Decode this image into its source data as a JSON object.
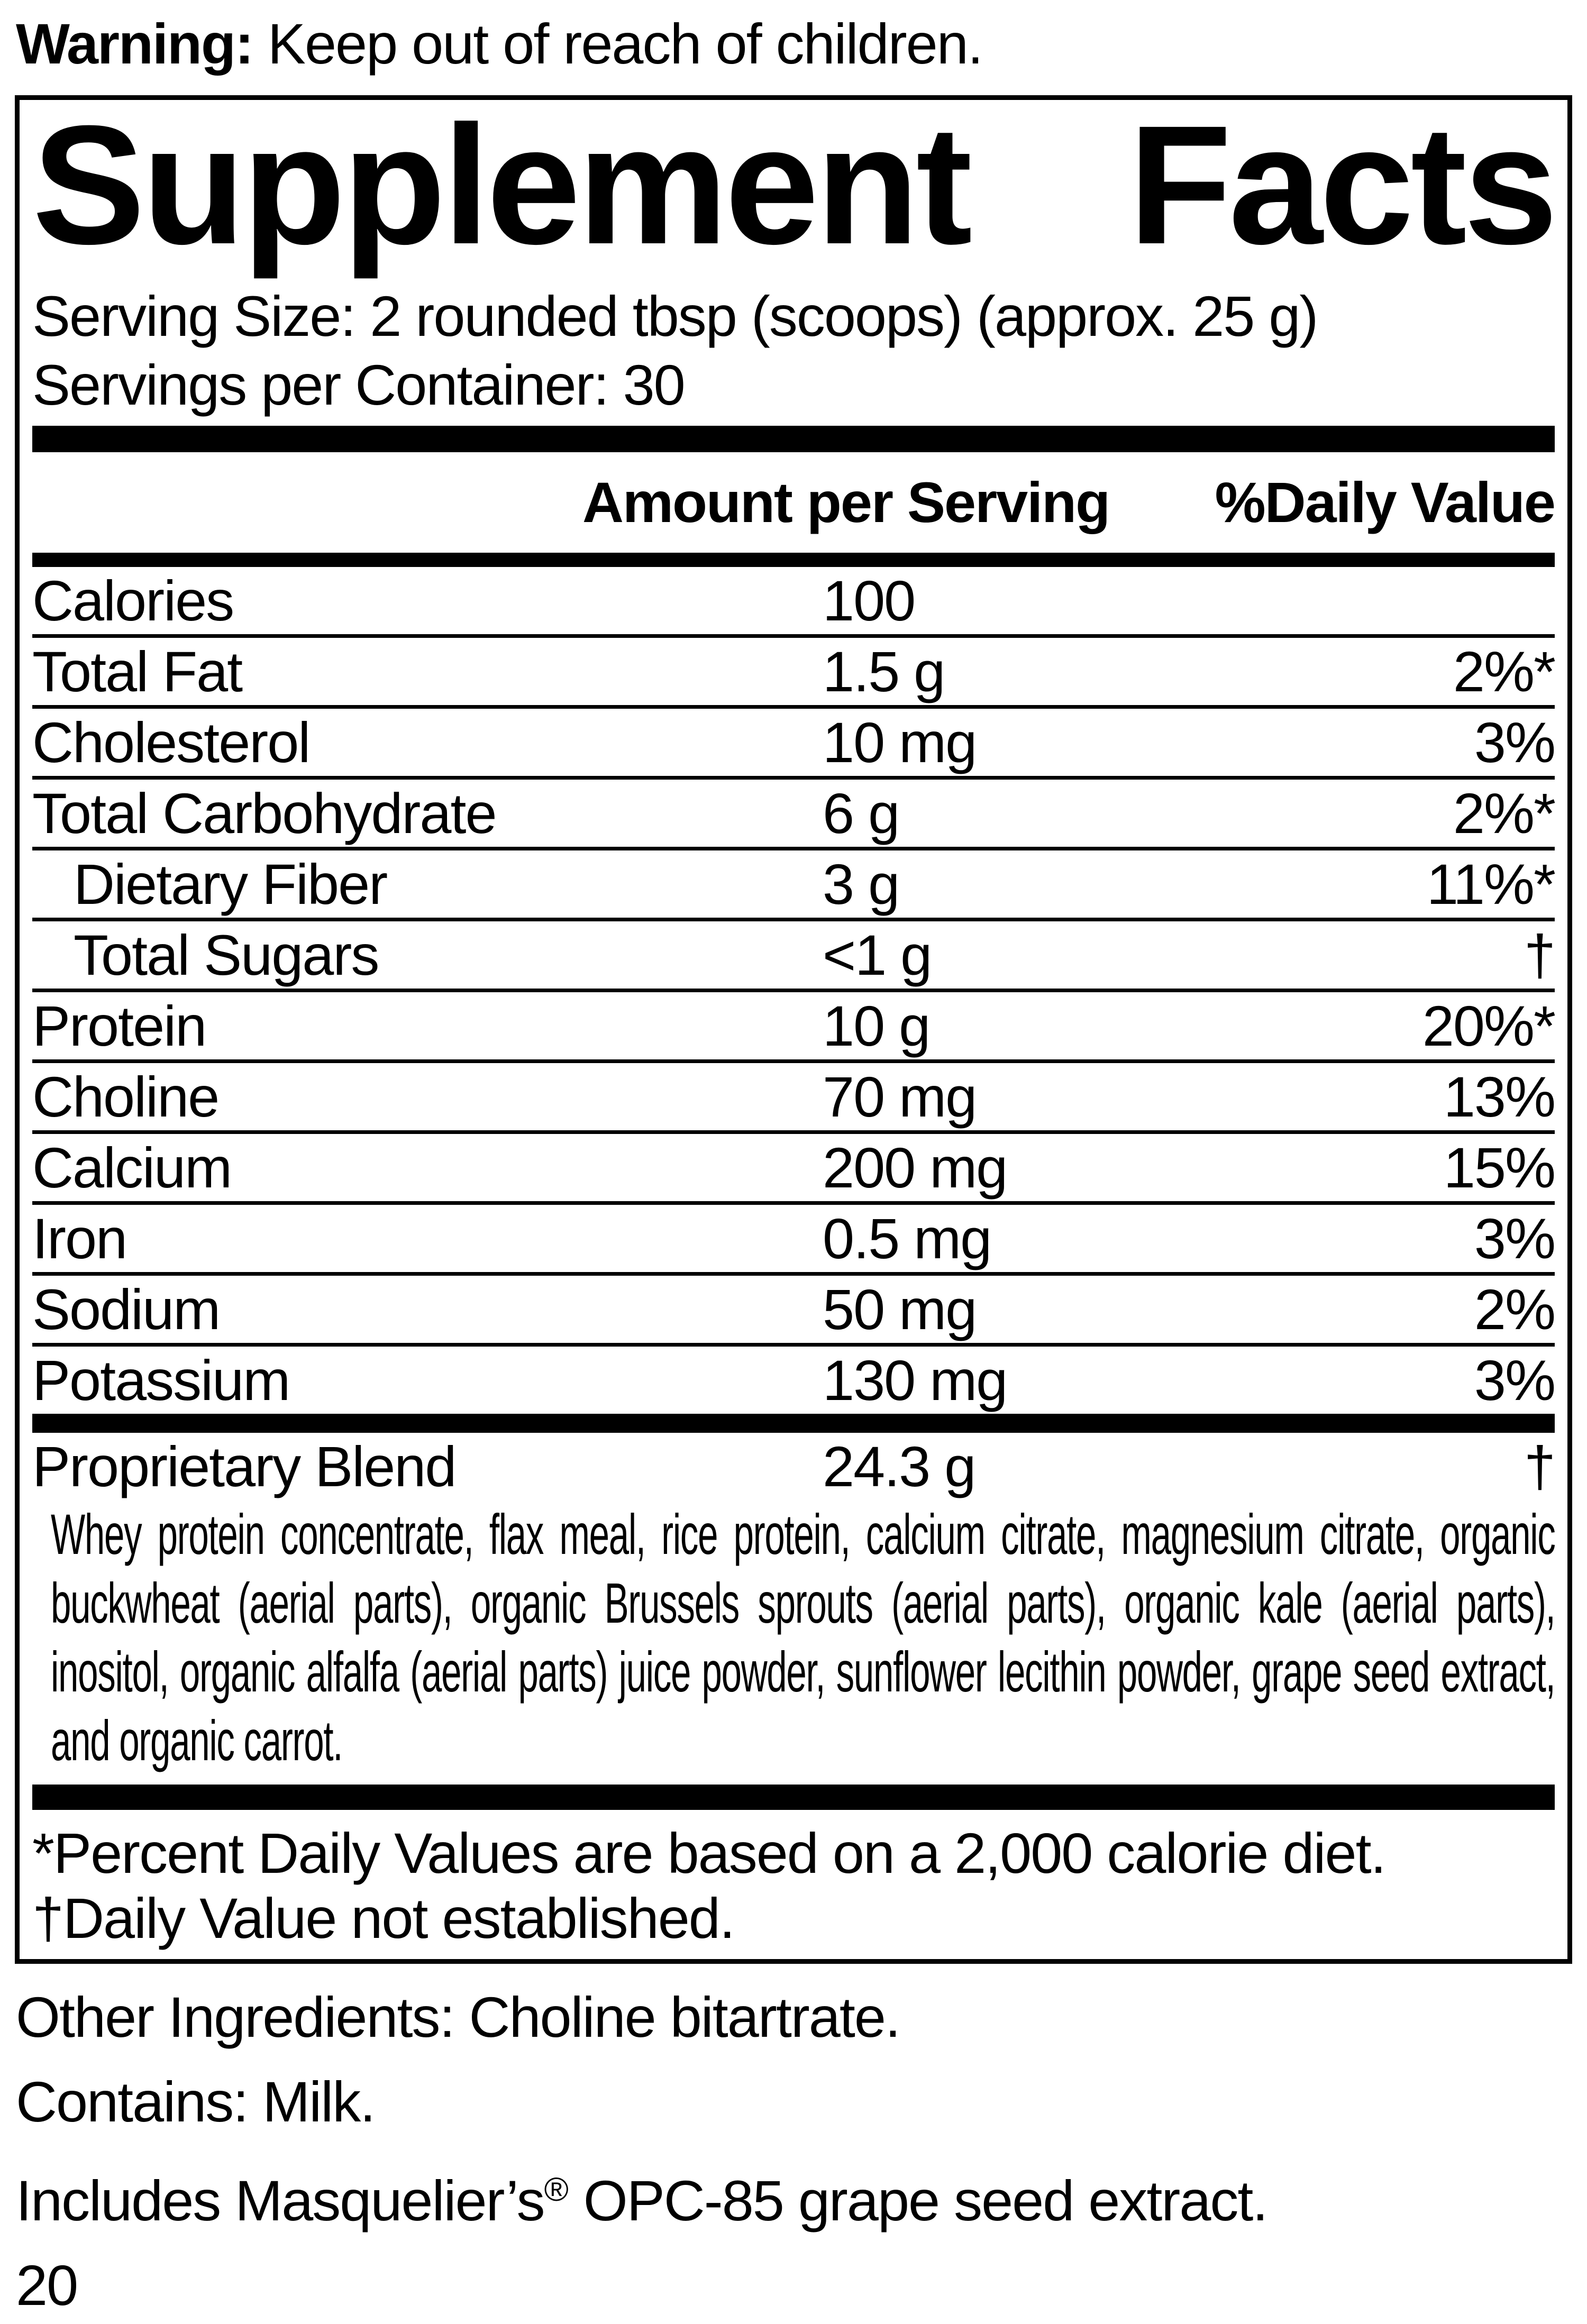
{
  "page": {
    "warning_bold": "Warning:",
    "warning_rest": " Keep out of reach of children.",
    "other_ingredients": "Other Ingredients: Choline bitartrate.",
    "contains": "Contains: Milk.",
    "includes_prefix": "Includes Masquelier’s",
    "includes_reg_mark": "®",
    "includes_suffix": " OPC-85 grape seed extract.",
    "page_number": "20"
  },
  "label": {
    "title_words": [
      "Supplement",
      "Facts"
    ],
    "serving_size": "Serving Size: 2 rounded tbsp (scoops) (approx. 25 g)",
    "servings_per_container": "Servings per Container: 30",
    "col_amount": "Amount per Serving",
    "col_dv": "%Daily Value",
    "rows": [
      {
        "name": "Calories",
        "amount": "100",
        "dv": ""
      },
      {
        "name": "Total Fat",
        "amount": "1.5 g",
        "dv": "2%*"
      },
      {
        "name": "Cholesterol",
        "amount": "10 mg",
        "dv": "3%"
      },
      {
        "name": "Total Carbohydrate",
        "amount": "6 g",
        "dv": "2%*"
      },
      {
        "name": "Dietary Fiber",
        "amount": "3 g",
        "dv": "11%*"
      },
      {
        "name": "Total Sugars",
        "amount": "<1 g",
        "dv": "†"
      },
      {
        "name": "Protein",
        "amount": "10 g",
        "dv": "20%*"
      },
      {
        "name": "Choline",
        "amount": "70 mg",
        "dv": "13%"
      },
      {
        "name": "Calcium",
        "amount": "200 mg",
        "dv": "15%"
      },
      {
        "name": "Iron",
        "amount": "0.5 mg",
        "dv": "3%"
      },
      {
        "name": "Sodium",
        "amount": "50 mg",
        "dv": "2%"
      },
      {
        "name": "Potassium",
        "amount": "130 mg",
        "dv": "3%"
      }
    ],
    "blend": {
      "name": "Proprietary Blend",
      "amount": "24.3 g",
      "dv": "†",
      "description": "Whey protein concentrate, flax meal, rice protein, calcium citrate, magnesium citrate, organic buckwheat (aerial parts), organic Brussels sprouts (aerial parts), organic kale (aerial parts), inositol, organic alfalfa (aerial parts) juice powder, sunflower lecithin powder, grape seed extract, and organic carrot."
    },
    "footnotes": [
      "*Percent Daily Values are based on a 2,000 calorie diet.",
      "†Daily Value not established."
    ]
  }
}
